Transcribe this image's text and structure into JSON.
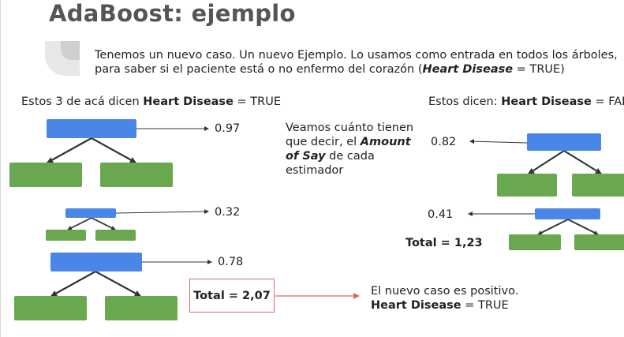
{
  "title": "AdaBoost: ejemplo",
  "intro": {
    "line1": "Tenemos un nuevo caso. Un nuevo Ejemplo. Lo usamos como entrada en todos los árboles,",
    "line2_prefix": "para saber si el paciente está o no enfermo del corazón (",
    "line2_bold": "Heart Disease",
    "line2_suffix": " = TRUE)"
  },
  "left_group": {
    "label_prefix": "Estos 3 de acá dicen ",
    "label_bold": "Heart Disease",
    "label_suffix": " = TRUE",
    "values": [
      "0.97",
      "0.32",
      "0.78"
    ],
    "total": "Total = 2,07"
  },
  "right_group": {
    "label_prefix": "Estos dicen: ",
    "label_bold": "Heart Disease",
    "label_suffix": " = FALSE",
    "values": [
      "0.82",
      "0.41"
    ],
    "total": "Total = 1,23"
  },
  "note": {
    "line1": "Veamos cuánto tienen",
    "line2": "que decir, el ",
    "line2_bold": "Amount",
    "line3_bold": "of Say",
    "line3": " de cada",
    "line4": "estimador"
  },
  "conclusion": {
    "line1": "El nuevo caso es positivo.",
    "line2_bold": "Heart Disease",
    "line2_suffix": " = TRUE"
  },
  "colors": {
    "node_root": "#4a86e8",
    "node_leaf": "#6aa84f",
    "total_border": "#e06666",
    "arrow_red": "#e06666"
  }
}
